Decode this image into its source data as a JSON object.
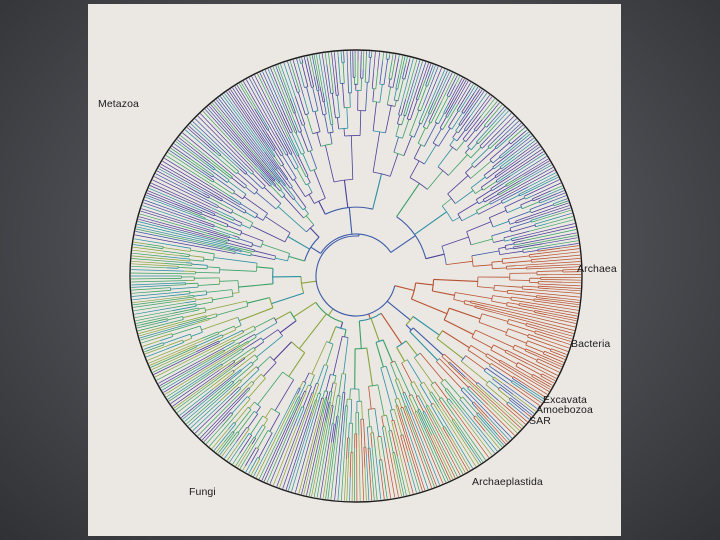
{
  "figure": {
    "labels": {
      "metazoa": "Metazoa",
      "archaea": "Archaea",
      "bacteria": "Bacteria",
      "excavata": "Excavata",
      "amoebozoa": "Amoebozoa",
      "sar": "SAR",
      "archaeplastida": "Archaeplastida",
      "fungi": "Fungi"
    },
    "palette": {
      "metazoa": "#4b3f98",
      "teal": "#2a8fa0",
      "green": "#3aa163",
      "olive": "#8aa43a",
      "bacteria": "#b8502e",
      "blue": "#3b5aa8",
      "background": "#ebe8e4",
      "outline": "#1d1d1d"
    }
  }
}
